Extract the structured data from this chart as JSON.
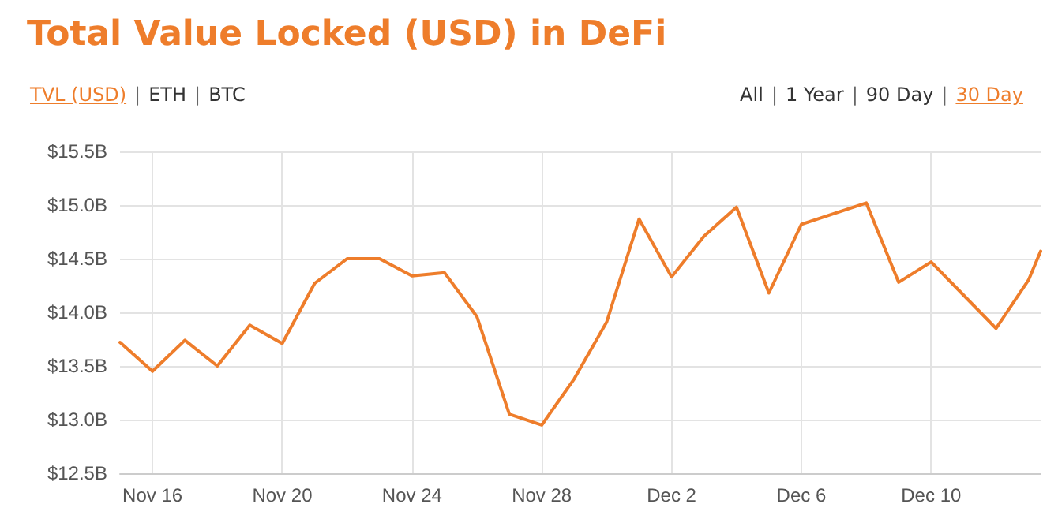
{
  "chart_data": {
    "type": "line",
    "title": "Total Value Locked (USD) in DeFi",
    "annotations": [
      "TVL (USD) | ETH | BTC",
      "All | 1 Year | 90 Day | 30 Day"
    ],
    "x": [
      "--11-15",
      "--11-16",
      "--11-17",
      "--11-18",
      "--11-19",
      "--11-20",
      "--11-21",
      "--11-22",
      "--11-23",
      "--11-24",
      "--11-25",
      "--11-26",
      "--11-27",
      "--11-28",
      "--11-29",
      "--11-30",
      "--12-01",
      "--12-02",
      "--12-03",
      "--12-04",
      "--12-05",
      "--12-06",
      "--12-07",
      "--12-08",
      "--12-09",
      "--12-10",
      "--12-11",
      "--12-12",
      "--12-13",
      "--12-13T09:00"
    ],
    "series": [
      {
        "color": "#ee7d2b",
        "values": [
          13.72,
          13.45,
          13.74,
          13.5,
          13.88,
          13.71,
          14.27,
          14.5,
          14.5,
          14.34,
          14.37,
          13.96,
          13.05,
          12.95,
          13.38,
          13.91,
          14.87,
          14.33,
          14.71,
          14.98,
          14.18,
          14.82,
          14.92,
          15.02,
          14.28,
          14.47,
          14.16,
          13.85,
          14.3,
          14.57
        ]
      }
    ],
    "xlim": [
      "--11-15",
      "--12-13T09:00"
    ],
    "xticks": [
      {
        "value": "--11-16",
        "label": "Nov 16"
      },
      {
        "value": "--11-20",
        "label": "Nov 20"
      },
      {
        "value": "--11-24",
        "label": "Nov 24"
      },
      {
        "value": "--11-28",
        "label": "Nov 28"
      },
      {
        "value": "--12-02",
        "label": "Dec 2"
      },
      {
        "value": "--12-06",
        "label": "Dec 6"
      },
      {
        "value": "--12-10",
        "label": "Dec 10"
      }
    ],
    "ylim": [
      12.5,
      15.5
    ],
    "yticks": [
      {
        "value": 12.5,
        "label": "$12.5B"
      },
      {
        "value": 13,
        "label": "$13.0B"
      },
      {
        "value": 13.5,
        "label": "$13.5B"
      },
      {
        "value": 14,
        "label": "$14.0B"
      },
      {
        "value": 14.5,
        "label": "$14.5B"
      },
      {
        "value": 15,
        "label": "$15.0B"
      },
      {
        "value": 15.5,
        "label": "$15.5B"
      }
    ],
    "grid": true,
    "marker": "none",
    "line_style": "solid"
  }
}
